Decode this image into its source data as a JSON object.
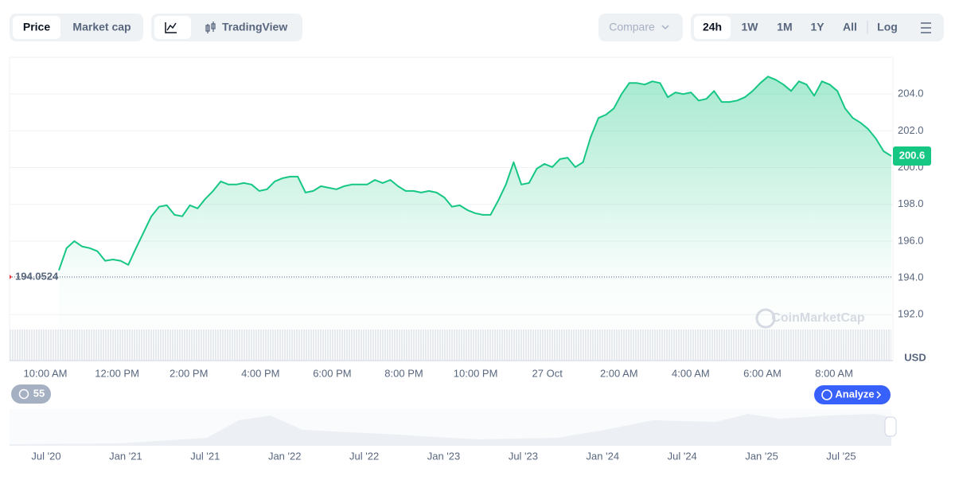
{
  "toolbar": {
    "view": [
      "Price",
      "Market cap"
    ],
    "mode": "TradingView",
    "compare": "Compare",
    "ranges": [
      "24h",
      "1W",
      "1M",
      "1Y",
      "All"
    ],
    "log": "Log"
  },
  "chart_data": {
    "type": "line",
    "color": "#16c784",
    "values": [
      194.41,
      195.62,
      196.0,
      195.71,
      195.62,
      195.45,
      194.93,
      195.0,
      194.93,
      194.71,
      195.62,
      196.48,
      197.35,
      197.87,
      197.95,
      197.43,
      197.35,
      197.95,
      197.78,
      198.3,
      198.73,
      199.25,
      199.08,
      199.08,
      199.16,
      199.08,
      198.73,
      198.82,
      199.25,
      199.42,
      199.51,
      199.51,
      198.64,
      198.73,
      198.99,
      198.9,
      198.82,
      198.99,
      199.08,
      199.08,
      199.08,
      199.33,
      199.16,
      199.33,
      198.99,
      198.73,
      198.73,
      198.64,
      198.73,
      198.64,
      198.38,
      197.87,
      197.95,
      197.69,
      197.52,
      197.43,
      197.43,
      198.21,
      199.08,
      200.29,
      199.08,
      199.16,
      199.94,
      200.2,
      200.03,
      200.46,
      200.54,
      200.03,
      200.29,
      201.67,
      202.7,
      202.88,
      203.22,
      204.0,
      204.6,
      204.6,
      204.52,
      204.69,
      204.6,
      203.83,
      204.09,
      204.0,
      204.09,
      203.65,
      203.74,
      204.17,
      203.57,
      203.57,
      203.65,
      203.83,
      204.17,
      204.6,
      204.95,
      204.78,
      204.52,
      204.17,
      204.69,
      204.52,
      203.91,
      204.69,
      204.52,
      204.17,
      203.22,
      202.7,
      202.44,
      202.1,
      201.58,
      200.89,
      200.63
    ],
    "ylim": [
      189.5,
      206
    ],
    "yticks": [
      {
        "value": 192,
        "label": "192.0"
      },
      {
        "value": 194,
        "label": "194.0"
      },
      {
        "value": 196,
        "label": "196.0"
      },
      {
        "value": 198,
        "label": "198.0"
      },
      {
        "value": 200,
        "label": "200.0"
      },
      {
        "value": 202,
        "label": "202.0"
      },
      {
        "value": 204,
        "label": "204.0"
      }
    ],
    "grid": true,
    "start_price": 194.0524,
    "last_value_label": "200.6",
    "y_unit": "USD",
    "x_tick_labels": [
      "10:00 AM",
      "12:00 PM",
      "2:00 PM",
      "4:00 PM",
      "6:00 PM",
      "8:00 PM",
      "10:00 PM",
      "27 Oct",
      "2:00 AM",
      "4:00 AM",
      "6:00 AM",
      "8:00 AM"
    ],
    "watermark": "CoinMarketCap"
  },
  "history_badge": "55",
  "analyze": "Analyze",
  "navigator": {
    "labels": [
      "Jul '20",
      "Jan '21",
      "Jul '21",
      "Jan '22",
      "Jul '22",
      "Jan '23",
      "Jul '23",
      "Jan '24",
      "Jul '24",
      "Jan '25",
      "Jul '25"
    ]
  }
}
